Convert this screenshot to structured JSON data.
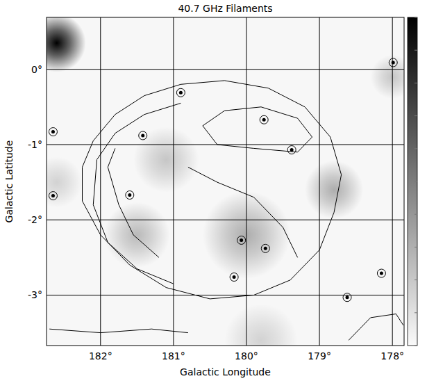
{
  "chart_data": {
    "type": "contour_map",
    "title": "40.7 GHz Filaments",
    "x_label": "Galactic Longitude",
    "y_label": "Galactic Latitude",
    "xlim": [
      182.74,
      177.84
    ],
    "ylim": [
      -3.67,
      0.69
    ],
    "xticks": [
      {
        "value": 182,
        "label": "182°"
      },
      {
        "value": 181,
        "label": "181°"
      },
      {
        "value": 180,
        "label": "180°"
      },
      {
        "value": 179,
        "label": "179°"
      },
      {
        "value": 178,
        "label": "178°"
      }
    ],
    "yticks": [
      {
        "value": 0,
        "label": "0°"
      },
      {
        "value": -1,
        "label": "-1°"
      },
      {
        "value": -2,
        "label": "-2°"
      },
      {
        "value": -3,
        "label": "-3°"
      }
    ],
    "grid": true,
    "colorbar": {
      "range": [
        0,
        1
      ],
      "ticks": [
        0,
        0.1,
        0.2,
        0.3,
        0.4,
        0.5,
        0.6,
        0.7,
        0.8,
        0.9,
        1
      ]
    },
    "emission": [
      {
        "l": 182.6,
        "b": 0.35,
        "value": 1.0,
        "width": 0.4
      },
      {
        "l": 180.0,
        "b": -2.2,
        "value": 0.3,
        "width": 0.6
      },
      {
        "l": 178.8,
        "b": -1.6,
        "value": 0.3,
        "width": 0.4
      },
      {
        "l": 181.5,
        "b": -2.2,
        "value": 0.25,
        "width": 0.45
      },
      {
        "l": 181.1,
        "b": -1.2,
        "value": 0.2,
        "width": 0.45
      },
      {
        "l": 179.8,
        "b": -3.6,
        "value": 0.15,
        "width": 0.5
      },
      {
        "l": 178.0,
        "b": -0.1,
        "value": 0.2,
        "width": 0.3
      },
      {
        "l": 182.6,
        "b": -1.5,
        "value": 0.15,
        "width": 0.35
      }
    ],
    "contours": [
      {
        "l": [
          182.25,
          182.1,
          181.8,
          181.4,
          180.9,
          180.3,
          179.7,
          179.2,
          178.85,
          178.7,
          178.8,
          179.0,
          179.4,
          179.9,
          180.5,
          181.1,
          181.6,
          182.0,
          182.25,
          182.25
        ],
        "b": [
          -1.3,
          -0.95,
          -0.6,
          -0.35,
          -0.2,
          -0.15,
          -0.25,
          -0.5,
          -0.9,
          -1.4,
          -1.9,
          -2.4,
          -2.8,
          -3.0,
          -3.05,
          -2.9,
          -2.6,
          -2.2,
          -1.75,
          -1.3
        ]
      },
      {
        "l": [
          181.0,
          181.5,
          181.9,
          182.1,
          182.05,
          181.8,
          181.4,
          180.9
        ],
        "b": [
          -2.85,
          -2.65,
          -2.3,
          -1.8,
          -1.2,
          -0.85,
          -0.6,
          -0.45
        ]
      },
      {
        "l": [
          181.2,
          181.55,
          181.75,
          181.9,
          181.8
        ],
        "b": [
          -2.5,
          -2.2,
          -1.8,
          -1.3,
          -1.05
        ]
      },
      {
        "l": [
          180.6,
          180.3,
          179.8,
          179.3,
          179.1,
          179.3,
          179.9,
          180.4,
          180.6
        ],
        "b": [
          -0.75,
          -0.55,
          -0.5,
          -0.65,
          -0.9,
          -1.1,
          -1.05,
          -1.0,
          -0.75
        ]
      },
      {
        "l": [
          180.8,
          180.4,
          179.9,
          179.5,
          179.3
        ],
        "b": [
          -1.3,
          -1.5,
          -1.7,
          -2.1,
          -2.5
        ]
      },
      {
        "l": [
          182.7,
          182.0,
          181.3,
          180.8
        ],
        "b": [
          -3.45,
          -3.5,
          -3.45,
          -3.5
        ]
      },
      {
        "l": [
          178.6,
          178.3,
          177.95,
          177.85
        ],
        "b": [
          -3.6,
          -3.3,
          -3.25,
          -3.4
        ]
      }
    ],
    "sources": [
      {
        "l": 180.07,
        "b": -2.27
      },
      {
        "l": 179.74,
        "b": -2.38
      },
      {
        "l": 180.17,
        "b": -2.76
      },
      {
        "l": 179.38,
        "b": -1.07
      },
      {
        "l": 179.76,
        "b": -0.67
      },
      {
        "l": 178.62,
        "b": -3.03
      },
      {
        "l": 178.15,
        "b": -2.71
      },
      {
        "l": 182.65,
        "b": -0.83
      },
      {
        "l": 182.65,
        "b": -1.68
      },
      {
        "l": 181.42,
        "b": -0.88
      },
      {
        "l": 181.6,
        "b": -1.67
      },
      {
        "l": 177.99,
        "b": 0.09
      },
      {
        "l": 180.9,
        "b": -0.31
      }
    ]
  }
}
